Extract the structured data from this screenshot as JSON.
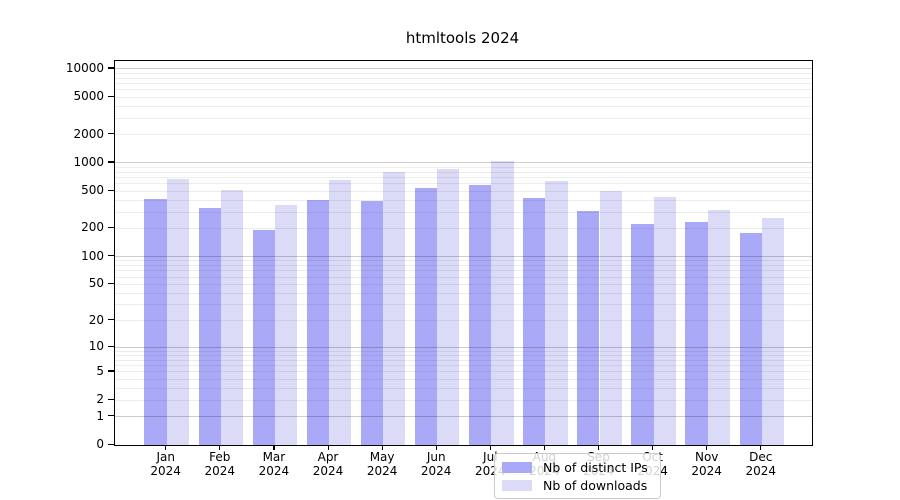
{
  "chart_data": {
    "type": "bar",
    "title": "htmltools 2024",
    "categories": [
      "Jan 2024",
      "Feb 2024",
      "Mar 2024",
      "Apr 2024",
      "May 2024",
      "Jun 2024",
      "Jul 2024",
      "Aug 2024",
      "Sep 2024",
      "Oct 2024",
      "Nov 2024",
      "Dec 2024"
    ],
    "series": [
      {
        "name": "Nb of distinct IPs",
        "color": "#a9a9f7",
        "values": [
          415,
          335,
          195,
          400,
          390,
          535,
          580,
          425,
          305,
          225,
          235,
          180
        ]
      },
      {
        "name": "Nb of downloads",
        "color": "#dbdbf7",
        "values": [
          680,
          510,
          355,
          655,
          805,
          870,
          1060,
          645,
          505,
          430,
          315,
          258
        ]
      }
    ],
    "yaxis": {
      "scale": "log10(v+1)",
      "tick_values": [
        0,
        1,
        2,
        5,
        10,
        20,
        50,
        100,
        200,
        500,
        1000,
        2000,
        5000,
        10000
      ],
      "tick_labels": [
        "0",
        "1",
        "2",
        "5",
        "10",
        "20",
        "50",
        "100",
        "200",
        "500",
        "1000",
        "2000",
        "5000",
        "10000"
      ],
      "ylim": [
        0,
        12000
      ],
      "grid": true
    },
    "xlabel": "",
    "ylabel": "",
    "legend_position": "lower center"
  }
}
